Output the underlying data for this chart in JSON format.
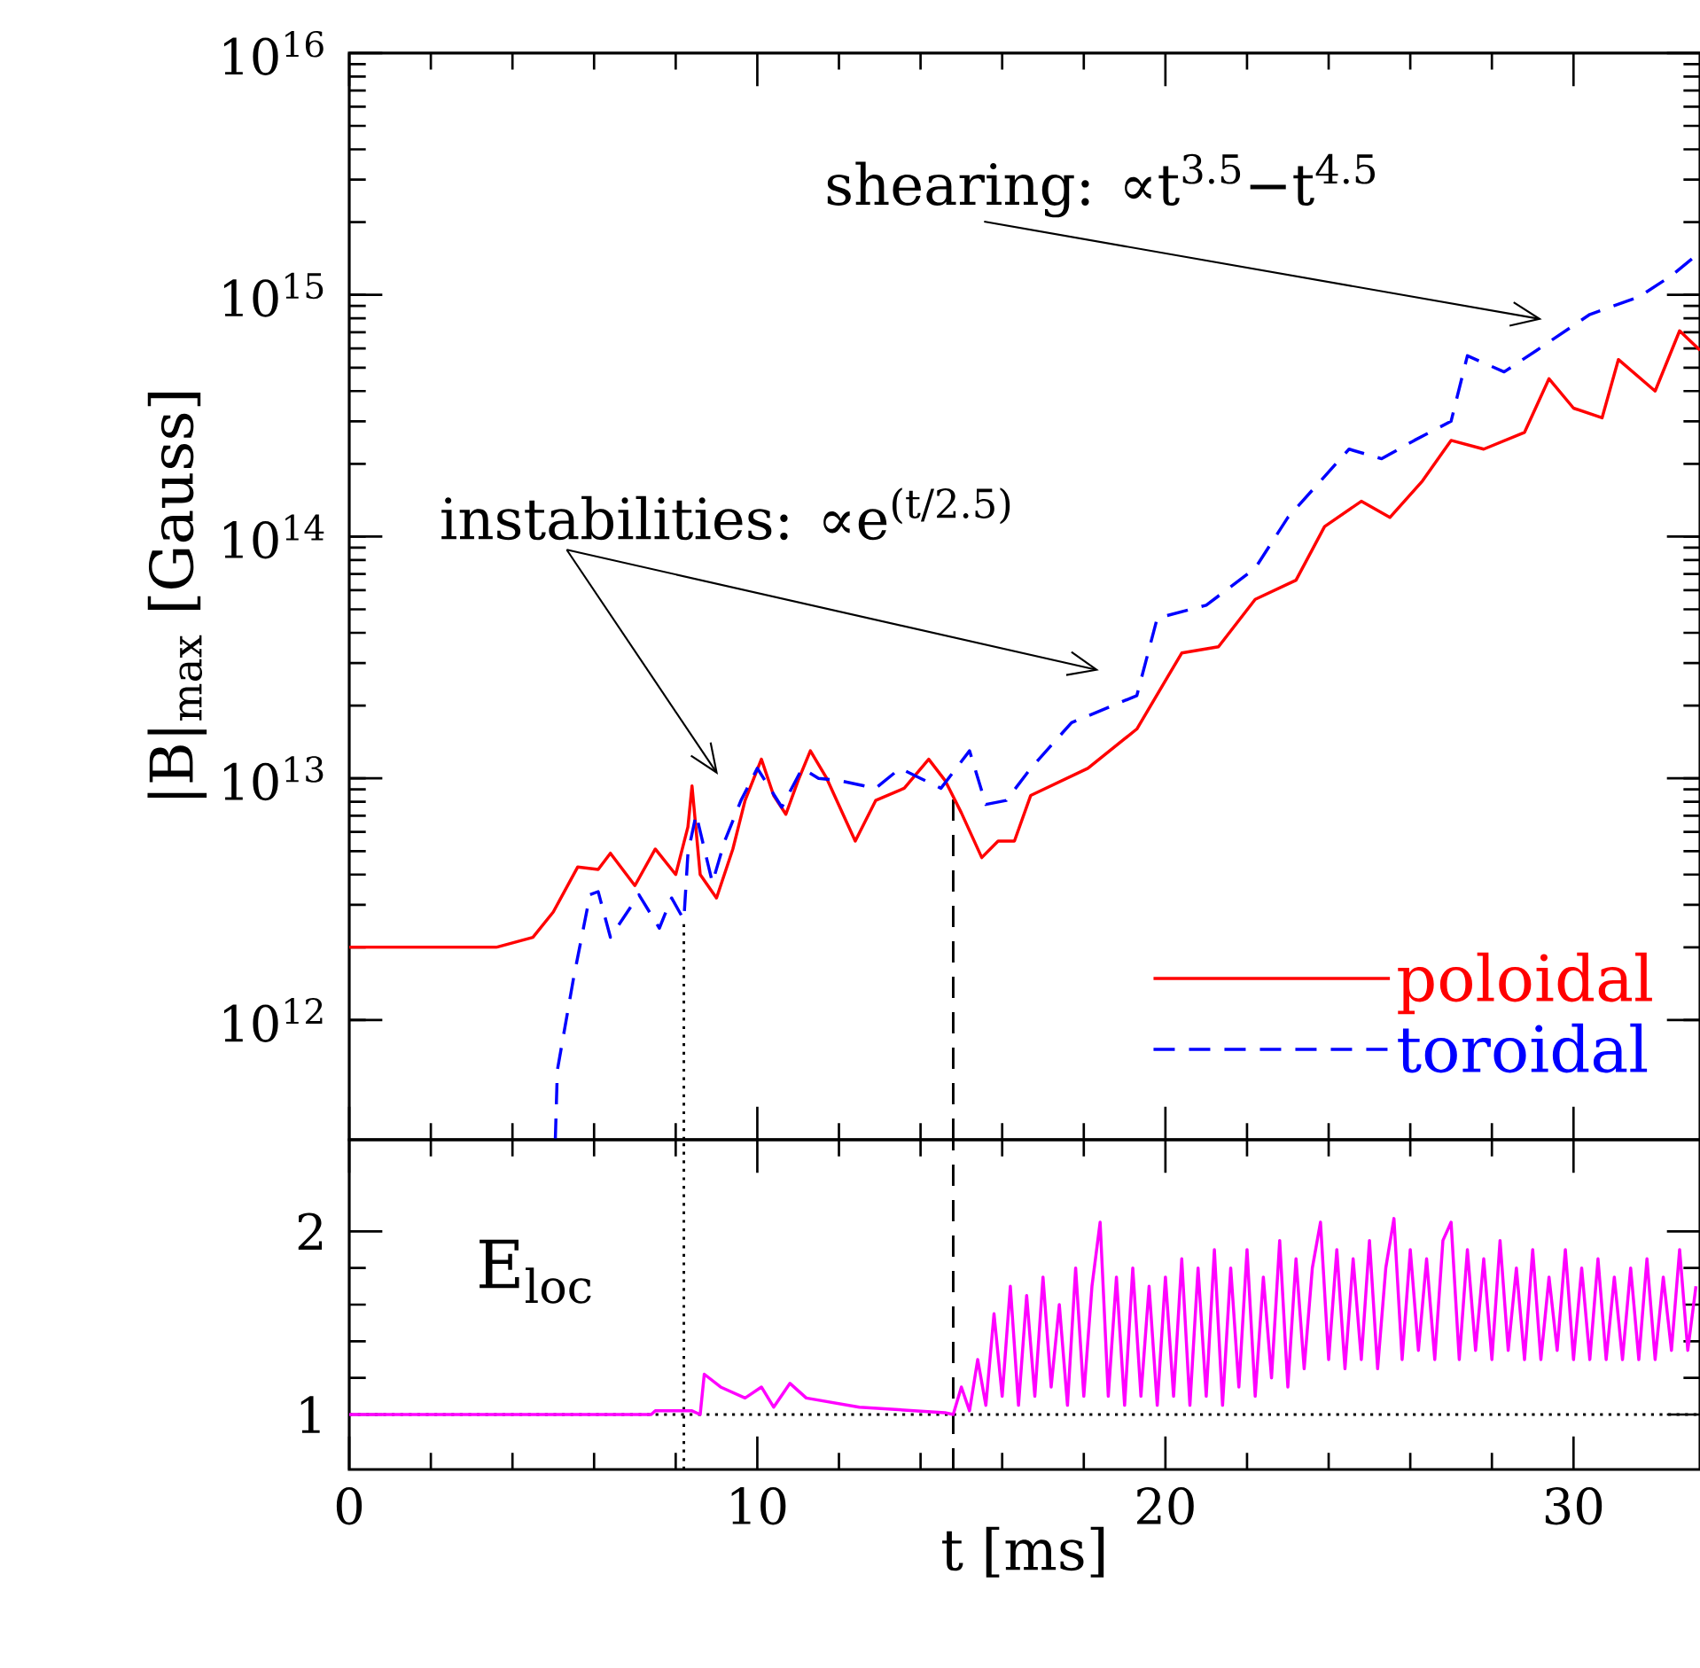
{
  "chart_data": [
    {
      "type": "line",
      "ylabel": "|B|$_{max}$  [Gauss]",
      "log": "y",
      "xlim": [
        0,
        33.1
      ],
      "ylim": [
        320000000000.0,
        1e+16
      ],
      "xticks": [
        0,
        10,
        20,
        30
      ],
      "yticks": [
        {
          "value": 1000000000000.0,
          "label": "10$^{12}$"
        },
        {
          "value": 10000000000000.0,
          "label": "10$^{13}$"
        },
        {
          "value": 100000000000000.0,
          "label": "10$^{14}$"
        },
        {
          "value": 1000000000000000.0,
          "label": "10$^{15}$"
        },
        {
          "value": 1e+16,
          "label": "10$^{16}$"
        }
      ],
      "tick_labels": "y",
      "legend": "bottom right",
      "series": [
        {
          "name": "poloidal",
          "color": "#ff0000",
          "line_style": "solid",
          "x": [
            0,
            3.6,
            4.5,
            5.0,
            5.6,
            6.1,
            6.4,
            7.0,
            7.5,
            8.0,
            8.3,
            8.4,
            8.6,
            9.0,
            9.4,
            9.7,
            10.1,
            10.4,
            10.7,
            11.0,
            11.3,
            11.7,
            12.1,
            12.4,
            12.9,
            13.6,
            14.2,
            14.6,
            15.0,
            15.5,
            15.9,
            16.3,
            16.7,
            18.1,
            19.3,
            20.4,
            21.3,
            22.2,
            23.2,
            23.9,
            24.8,
            25.5,
            26.3,
            27.0,
            27.8,
            28.8,
            29.4,
            30.0,
            30.7,
            31.1,
            32.0,
            32.6,
            33.1
          ],
          "values": [
            2000000000000.0,
            2000000000000.0,
            2200000000000.0,
            2800000000000.0,
            4300000000000.0,
            4200000000000.0,
            4900000000000.0,
            3600000000000.0,
            5100000000000.0,
            4000000000000.0,
            6300000000000.0,
            9300000000000.0,
            4000000000000.0,
            3200000000000.0,
            5100000000000.0,
            8100000000000.0,
            12000000000000.0,
            8500000000000.0,
            7100000000000.0,
            9800000000000.0,
            13000000000000.0,
            10000000000000.0,
            7100000000000.0,
            5500000000000.0,
            8100000000000.0,
            9100000000000.0,
            12000000000000.0,
            9800000000000.0,
            7200000000000.0,
            4700000000000.0,
            5500000000000.0,
            5500000000000.0,
            8500000000000.0,
            11000000000000.0,
            16000000000000.0,
            33000000000000.0,
            35000000000000.0,
            55000000000000.0,
            66000000000000.0,
            110000000000000.0,
            140000000000000.0,
            120000000000000.0,
            170000000000000.0,
            250000000000000.0,
            230000000000000.0,
            270000000000000.0,
            450000000000000.0,
            340000000000000.0,
            310000000000000.0,
            540000000000000.0,
            400000000000000.0,
            710000000000000.0,
            590000000000000.0
          ]
        },
        {
          "name": "toroidal",
          "color": "#0000ff",
          "line_style": "dashed",
          "x": [
            5.05,
            5.1,
            5.5,
            5.9,
            6.1,
            6.4,
            7.1,
            7.6,
            7.9,
            8.2,
            8.3,
            8.5,
            8.9,
            9.2,
            9.6,
            10.0,
            10.6,
            11.1,
            11.5,
            12.0,
            12.9,
            13.5,
            14.0,
            14.5,
            15.2,
            15.6,
            16.1,
            16.7,
            17.7,
            19.3,
            19.8,
            21.0,
            22.2,
            23.0,
            24.5,
            25.3,
            26.1,
            27.0,
            27.4,
            28.3,
            29.1,
            30.4,
            31.6,
            32.4,
            33.1
          ],
          "values": [
            320000000000.0,
            620000000000.0,
            1500000000000.0,
            3300000000000.0,
            3400000000000.0,
            2200000000000.0,
            3300000000000.0,
            2400000000000.0,
            3200000000000.0,
            2600000000000.0,
            4900000000000.0,
            7100000000000.0,
            3700000000000.0,
            5500000000000.0,
            8100000000000.0,
            11000000000000.0,
            7600000000000.0,
            11000000000000.0,
            10000000000000.0,
            9800000000000.0,
            9100000000000.0,
            11000000000000.0,
            10000000000000.0,
            9100000000000.0,
            13000000000000.0,
            7800000000000.0,
            8100000000000.0,
            11000000000000.0,
            17000000000000.0,
            22000000000000.0,
            46000000000000.0,
            52000000000000.0,
            74000000000000.0,
            120000000000000.0,
            230000000000000.0,
            210000000000000.0,
            250000000000000.0,
            300000000000000.0,
            560000000000000.0,
            480000000000000.0,
            590000000000000.0,
            830000000000000.0,
            980000000000000.0,
            1200000000000000.0,
            1500000000000000.0
          ]
        }
      ],
      "ref_lines": [
        {
          "axis": "x",
          "value": 8.2,
          "color": "#000000",
          "line_style": "dotted"
        },
        {
          "axis": "x",
          "value": 14.8,
          "color": "#000000",
          "line_style": "dashed"
        }
      ],
      "annotations": [
        "shearing: ∝t$^{3.5}$−t$^{4.5}$",
        "instabilities: ∝e$^{(t/2.5)}$"
      ]
    },
    {
      "type": "line",
      "xlabel": "t  [ms]",
      "xlim": [
        0,
        33.1
      ],
      "ylim": [
        0.7,
        2.5
      ],
      "xticks": [
        0,
        10,
        20,
        30
      ],
      "yticks": [
        1,
        2
      ],
      "series": [
        {
          "color": "#ff00ff",
          "line_style": "solid",
          "x": [
            0,
            7.4,
            7.5,
            8.4,
            8.6,
            8.7,
            9.1,
            9.7,
            10.1,
            10.4,
            10.8,
            11.2,
            12.5,
            14.6,
            14.8,
            15.0,
            15.2,
            15.4,
            15.6,
            15.8,
            16.0,
            16.2,
            16.4,
            16.6,
            16.8,
            17.0,
            17.2,
            17.4,
            17.6,
            17.8,
            18.0,
            18.2,
            18.4,
            18.6,
            18.8,
            19.0,
            19.2,
            19.4,
            19.6,
            19.8,
            20.0,
            20.2,
            20.4,
            20.6,
            20.8,
            21.0,
            21.2,
            21.4,
            21.6,
            21.8,
            22.0,
            22.2,
            22.4,
            22.6,
            22.8,
            23.0,
            23.2,
            23.4,
            23.6,
            23.8,
            24.0,
            24.2,
            24.4,
            24.6,
            24.8,
            25.0,
            25.2,
            25.4,
            25.6,
            25.8,
            26.0,
            26.2,
            26.4,
            26.6,
            26.8,
            27.0,
            27.2,
            27.4,
            27.6,
            27.8,
            28.0,
            28.2,
            28.4,
            28.6,
            28.8,
            29.0,
            29.2,
            29.4,
            29.6,
            29.8,
            30.0,
            30.2,
            30.4,
            30.6,
            30.8,
            31.0,
            31.2,
            31.4,
            31.6,
            31.8,
            32.0,
            32.2,
            32.4,
            32.6,
            32.8,
            33.0
          ],
          "values": [
            1.0,
            1.0,
            1.02,
            1.02,
            1.0,
            1.22,
            1.15,
            1.09,
            1.15,
            1.04,
            1.17,
            1.09,
            1.04,
            1.01,
            1.0,
            1.15,
            1.02,
            1.3,
            1.05,
            1.55,
            1.1,
            1.7,
            1.05,
            1.65,
            1.1,
            1.75,
            1.15,
            1.6,
            1.05,
            1.8,
            1.1,
            1.7,
            2.05,
            1.1,
            1.75,
            1.05,
            1.8,
            1.1,
            1.7,
            1.05,
            1.75,
            1.1,
            1.85,
            1.05,
            1.8,
            1.1,
            1.9,
            1.05,
            1.8,
            1.15,
            1.9,
            1.1,
            1.75,
            1.2,
            1.95,
            1.15,
            1.85,
            1.25,
            1.8,
            2.05,
            1.3,
            1.9,
            1.25,
            1.85,
            1.3,
            1.95,
            1.25,
            1.8,
            2.07,
            1.3,
            1.9,
            1.35,
            1.85,
            1.3,
            1.95,
            2.05,
            1.3,
            1.9,
            1.35,
            1.85,
            1.3,
            1.95,
            1.35,
            1.8,
            1.3,
            1.9,
            1.3,
            1.75,
            1.35,
            1.9,
            1.3,
            1.8,
            1.3,
            1.85,
            1.3,
            1.75,
            1.3,
            1.8,
            1.3,
            1.85,
            1.3,
            1.75,
            1.35,
            1.9,
            1.35,
            1.7
          ]
        }
      ],
      "ref_lines": [
        {
          "axis": "y",
          "value": 1,
          "color": "#000000",
          "line_style": "dotted"
        },
        {
          "axis": "x",
          "value": 8.2,
          "color": "#000000",
          "line_style": "dotted"
        },
        {
          "axis": "x",
          "value": 14.8,
          "color": "#000000",
          "line_style": "dashed"
        }
      ],
      "annotations": [
        "E$_{loc}$"
      ]
    }
  ]
}
